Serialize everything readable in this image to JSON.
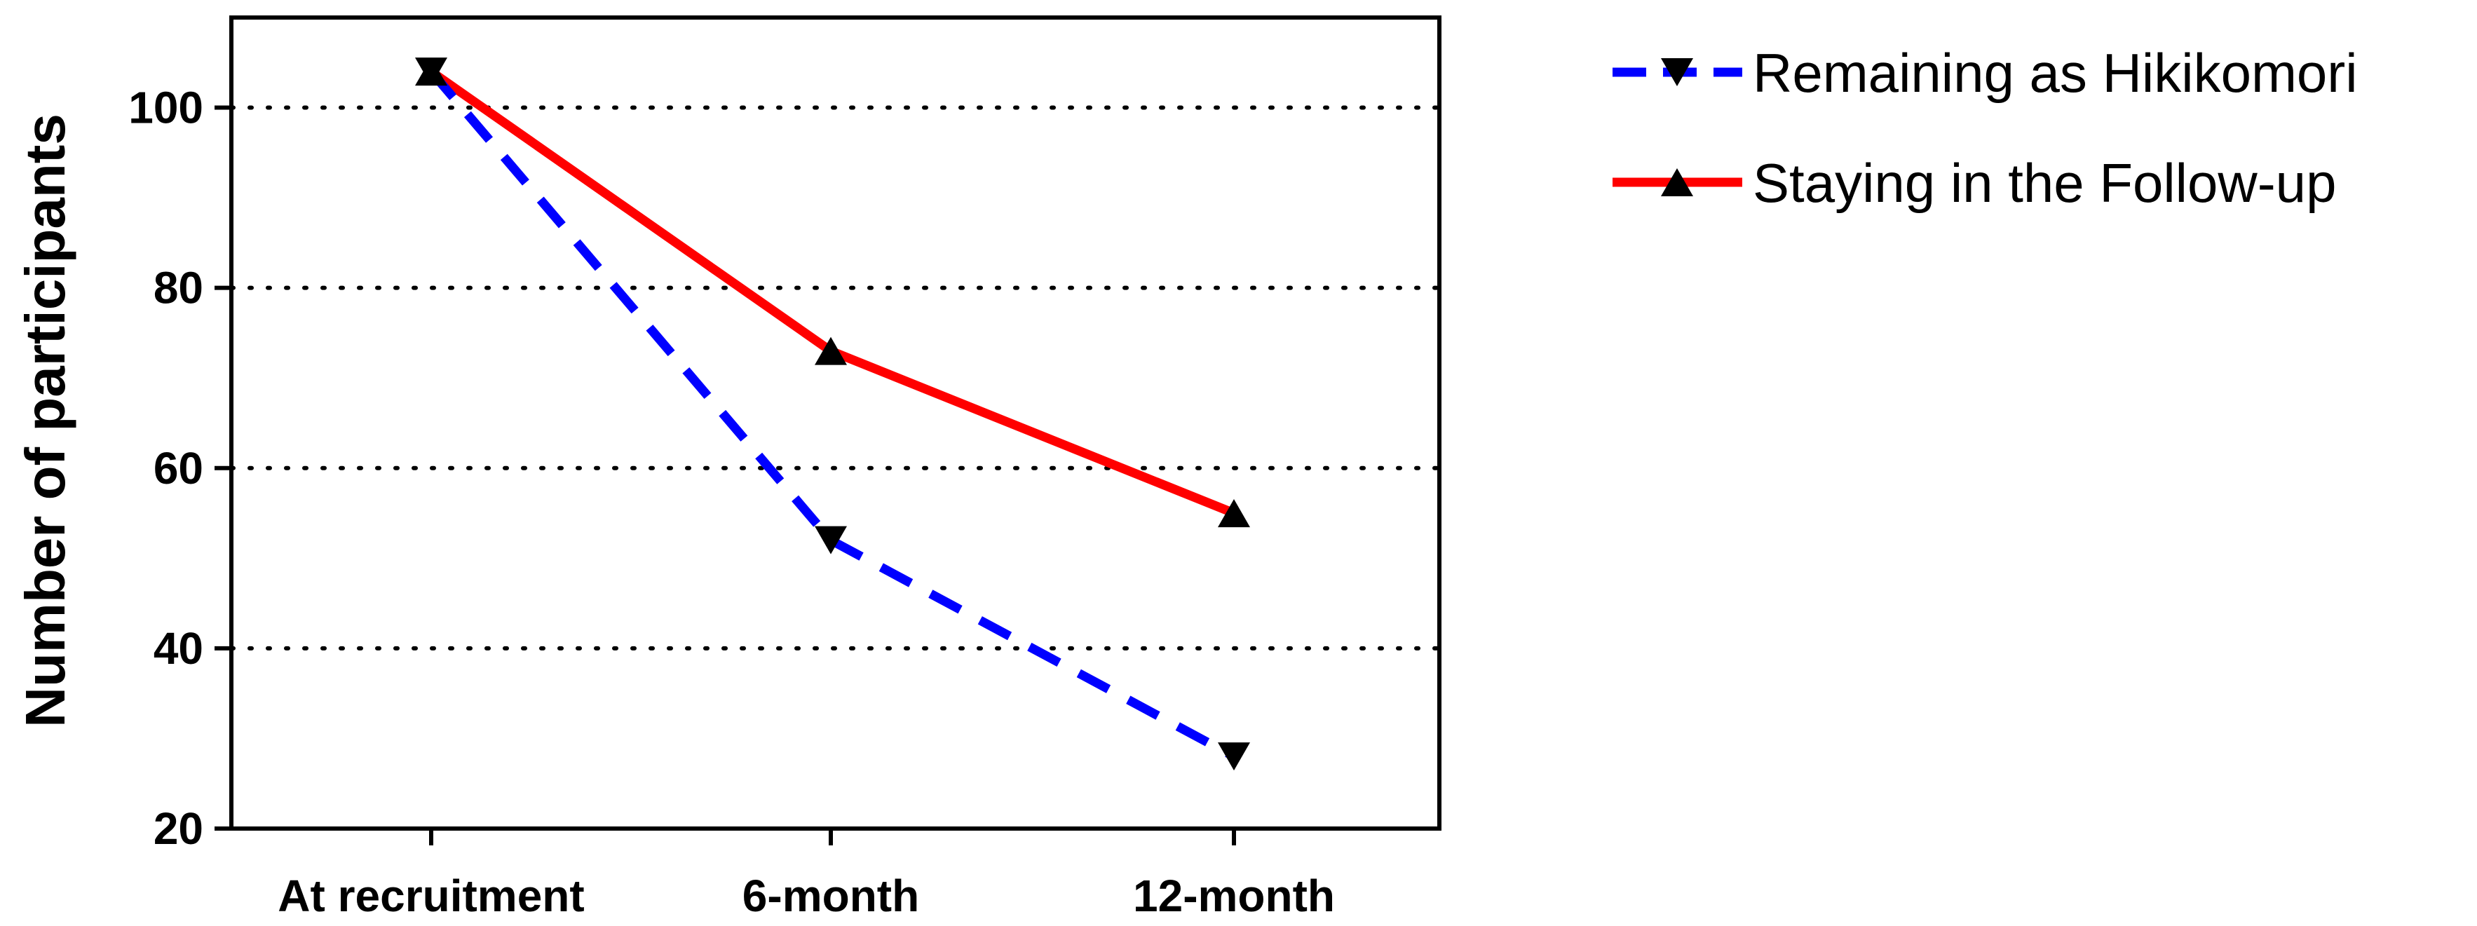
{
  "chart_data": {
    "type": "line",
    "title": "",
    "xlabel": "",
    "ylabel": "Number of participants",
    "categories": [
      "At recruitment",
      "6-month",
      "12-month"
    ],
    "ylim": [
      20,
      110
    ],
    "yticks": [
      20,
      40,
      60,
      80,
      100
    ],
    "grid": "horizontal dotted",
    "legend_position": "top-right (outside plot)",
    "series": [
      {
        "name": "Remaining as Hikikomori",
        "values": [
          104,
          52,
          28
        ],
        "color": "#0000ff",
        "line_style": "dashed",
        "marker": "triangle-down"
      },
      {
        "name": "Staying in the Follow-up",
        "values": [
          104,
          73,
          55
        ],
        "color": "#ff0000",
        "line_style": "solid",
        "marker": "triangle-up"
      }
    ]
  }
}
